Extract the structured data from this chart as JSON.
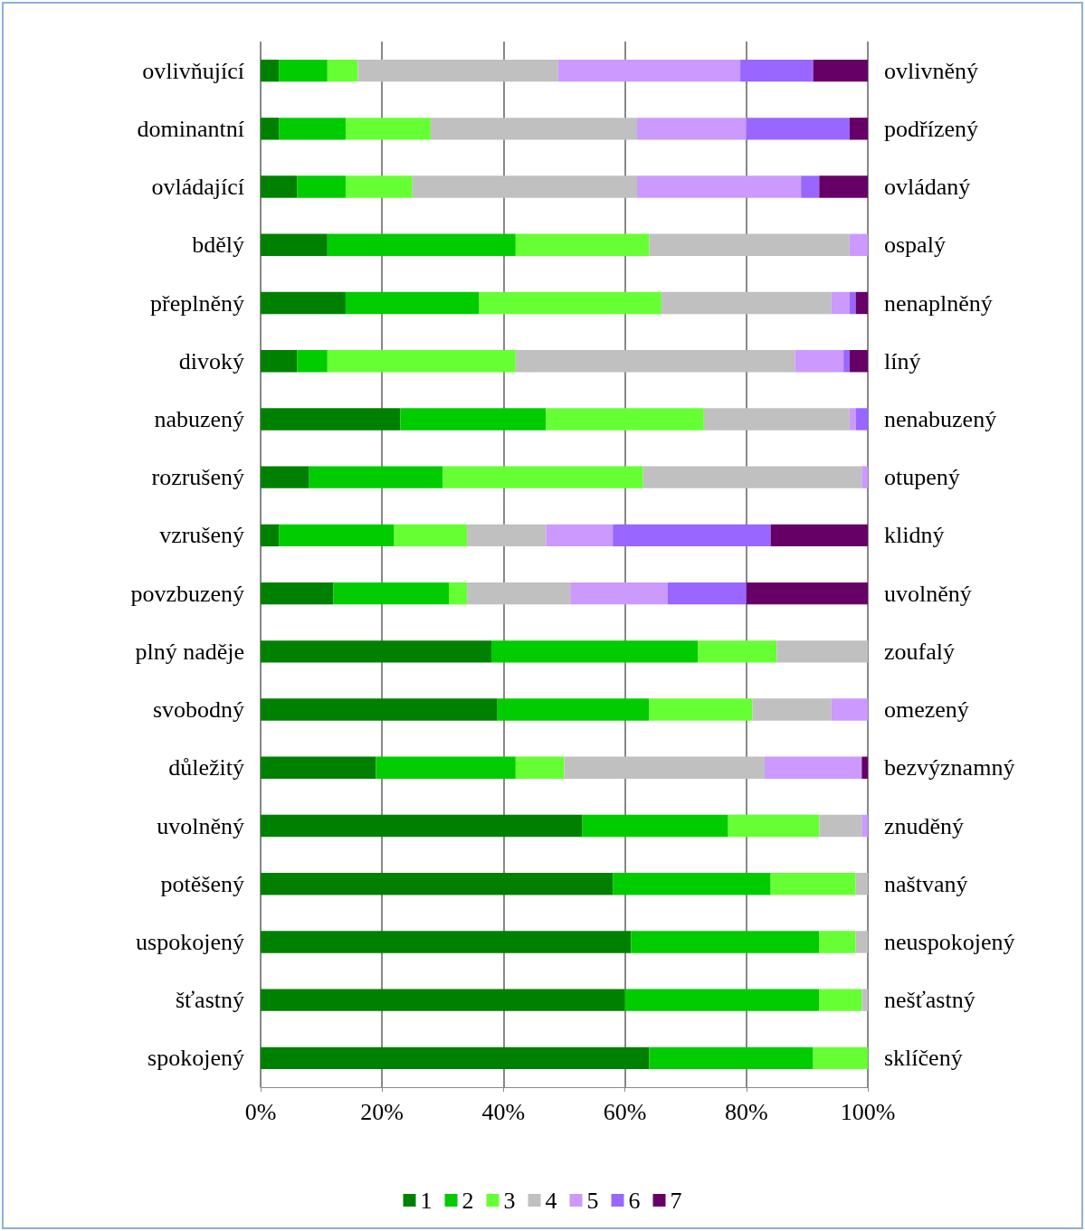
{
  "chart_data": {
    "type": "bar",
    "orientation": "horizontal",
    "stacked": true,
    "categories": [
      "ovlivňující",
      "dominantní",
      "ovládající",
      "bdělý",
      "přeplněný",
      "divoký",
      "nabuzený",
      "rozrušený",
      "vzrušený",
      "povzbuzený",
      "plný naděje",
      "svobodný",
      "důležitý",
      "uvolněný",
      "potěšený",
      "uspokojený",
      "šťastný",
      "spokojený"
    ],
    "y2_categories": [
      "ovlivněný",
      "podřízený",
      "ovládaný",
      "ospalý",
      "nenaplněný",
      "líný",
      "nenabuzený",
      "otupený",
      "klidný",
      "uvolněný",
      "zoufalý",
      "omezený",
      "bezvýznamný",
      "znuděný",
      "naštvaný",
      "neuspokojený",
      "nešťastný",
      "sklíčený"
    ],
    "series": [
      {
        "name": "1",
        "color": "#008000",
        "values": [
          3,
          3,
          6,
          11,
          14,
          6,
          23,
          8,
          3,
          12,
          38,
          39,
          19,
          53,
          58,
          61,
          60,
          64
        ]
      },
      {
        "name": "2",
        "color": "#00cc00",
        "values": [
          8,
          11,
          8,
          31,
          22,
          5,
          24,
          22,
          19,
          19,
          34,
          25,
          23,
          24,
          26,
          31,
          32,
          27
        ]
      },
      {
        "name": "3",
        "color": "#66ff33",
        "values": [
          5,
          14,
          11,
          22,
          30,
          31,
          26,
          33,
          12,
          3,
          13,
          17,
          8,
          15,
          14,
          6,
          7,
          9
        ]
      },
      {
        "name": "4",
        "color": "#c0c0c0",
        "values": [
          33,
          34,
          37,
          33,
          28,
          46,
          24,
          36,
          13,
          17,
          15,
          13,
          33,
          7,
          2,
          2,
          1,
          null
        ]
      },
      {
        "name": "5",
        "color": "#cc99ff",
        "values": [
          30,
          18,
          27,
          3,
          3,
          8,
          1,
          1,
          11,
          16,
          null,
          6,
          16,
          1,
          null,
          null,
          null,
          null
        ]
      },
      {
        "name": "6",
        "color": "#9966ff",
        "values": [
          12,
          17,
          3,
          null,
          1,
          1,
          2,
          null,
          26,
          13,
          null,
          null,
          null,
          null,
          null,
          null,
          null,
          null
        ]
      },
      {
        "name": "7",
        "color": "#660066",
        "values": [
          9,
          3,
          8,
          null,
          2,
          3,
          null,
          null,
          16,
          20,
          null,
          null,
          1,
          null,
          null,
          null,
          null,
          null
        ]
      }
    ],
    "xlim": [
      0,
      100
    ],
    "xticks": [
      {
        "value": 0,
        "label": "0%"
      },
      {
        "value": 20,
        "label": "20%"
      },
      {
        "value": 40,
        "label": "40%"
      },
      {
        "value": 60,
        "label": "60%"
      },
      {
        "value": 80,
        "label": "80%"
      },
      {
        "value": 100,
        "label": "100%"
      }
    ],
    "grid": "x",
    "legend": "bottom"
  }
}
